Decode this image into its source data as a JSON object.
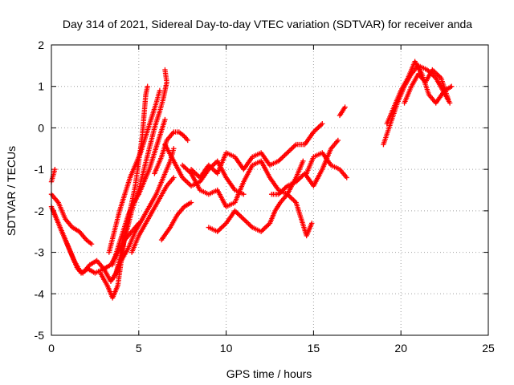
{
  "chart_data": {
    "type": "scatter",
    "title": "Day 314 of 2021, Sidereal Day-to-day VTEC variation (SDTVAR) for receiver anda",
    "xlabel": "GPS time / hours",
    "ylabel": "SDTVAR / TECUs",
    "xlim": [
      0,
      25
    ],
    "ylim": [
      -5,
      2
    ],
    "xticks": [
      "0",
      "5",
      "10",
      "15",
      "20",
      "25"
    ],
    "yticks": [
      "-5",
      "-4",
      "-3",
      "-2",
      "-1",
      "0",
      "1",
      "2"
    ],
    "grid": true,
    "marker": "+",
    "color": "#ff0000",
    "series": [
      {
        "name": "arc-1",
        "points": [
          [
            0.0,
            -1.3
          ],
          [
            0.2,
            -1.0
          ]
        ]
      },
      {
        "name": "arc-2",
        "points": [
          [
            0.0,
            -1.6
          ],
          [
            0.4,
            -1.8
          ],
          [
            0.8,
            -2.2
          ],
          [
            1.2,
            -2.4
          ],
          [
            1.6,
            -2.5
          ],
          [
            2.0,
            -2.7
          ],
          [
            2.3,
            -2.8
          ]
        ]
      },
      {
        "name": "arc-3",
        "points": [
          [
            0.0,
            -1.9
          ],
          [
            0.3,
            -2.2
          ],
          [
            0.7,
            -2.6
          ],
          [
            1.0,
            -2.9
          ],
          [
            1.3,
            -3.2
          ],
          [
            1.7,
            -3.5
          ],
          [
            2.1,
            -3.4
          ],
          [
            2.5,
            -3.5
          ],
          [
            3.0,
            -3.4
          ],
          [
            3.4,
            -3.3
          ],
          [
            3.8,
            -3.0
          ],
          [
            4.2,
            -2.7
          ],
          [
            4.6,
            -2.5
          ],
          [
            5.0,
            -2.3
          ]
        ]
      },
      {
        "name": "arc-4",
        "points": [
          [
            0.1,
            -2.0
          ],
          [
            0.5,
            -2.4
          ],
          [
            0.9,
            -2.8
          ],
          [
            1.2,
            -3.1
          ],
          [
            1.5,
            -3.4
          ],
          [
            1.8,
            -3.5
          ],
          [
            2.2,
            -3.3
          ],
          [
            2.6,
            -3.2
          ],
          [
            3.0,
            -3.4
          ],
          [
            3.4,
            -3.7
          ],
          [
            3.7,
            -3.5
          ],
          [
            4.0,
            -3.0
          ],
          [
            4.3,
            -2.5
          ],
          [
            4.6,
            -2.0
          ],
          [
            5.0,
            -1.5
          ],
          [
            5.3,
            -1.0
          ],
          [
            5.6,
            -0.5
          ],
          [
            5.9,
            0.0
          ],
          [
            6.2,
            0.4
          ],
          [
            6.4,
            0.7
          ],
          [
            6.6,
            1.1
          ],
          [
            6.5,
            1.4
          ]
        ]
      },
      {
        "name": "arc-5",
        "points": [
          [
            2.8,
            -3.5
          ],
          [
            3.2,
            -3.8
          ],
          [
            3.5,
            -4.1
          ],
          [
            3.8,
            -3.8
          ],
          [
            4.0,
            -3.2
          ],
          [
            4.2,
            -2.6
          ],
          [
            4.5,
            -2.0
          ],
          [
            4.8,
            -1.4
          ],
          [
            5.0,
            -0.8
          ],
          [
            5.2,
            -0.2
          ],
          [
            5.3,
            0.3
          ],
          [
            5.4,
            0.8
          ],
          [
            5.5,
            1.0
          ]
        ]
      },
      {
        "name": "arc-6",
        "points": [
          [
            3.3,
            -3.0
          ],
          [
            3.6,
            -2.5
          ],
          [
            3.9,
            -2.0
          ],
          [
            4.2,
            -1.6
          ],
          [
            4.5,
            -1.2
          ],
          [
            4.8,
            -0.9
          ],
          [
            5.1,
            -0.6
          ],
          [
            5.4,
            -0.2
          ],
          [
            5.7,
            0.2
          ],
          [
            6.0,
            0.6
          ],
          [
            6.2,
            0.9
          ]
        ]
      },
      {
        "name": "arc-7",
        "points": [
          [
            3.5,
            -3.3
          ],
          [
            3.8,
            -2.9
          ],
          [
            4.1,
            -2.5
          ],
          [
            4.4,
            -2.1
          ],
          [
            4.7,
            -1.8
          ],
          [
            5.0,
            -1.6
          ],
          [
            5.3,
            -1.3
          ],
          [
            5.6,
            -1.0
          ],
          [
            5.9,
            -0.6
          ],
          [
            6.2,
            -0.2
          ],
          [
            6.5,
            0.2
          ]
        ]
      },
      {
        "name": "arc-8",
        "points": [
          [
            3.6,
            -3.6
          ],
          [
            4.0,
            -3.2
          ],
          [
            4.4,
            -2.9
          ],
          [
            4.8,
            -2.5
          ],
          [
            5.2,
            -2.2
          ],
          [
            5.6,
            -1.9
          ],
          [
            6.0,
            -1.6
          ],
          [
            6.4,
            -1.2
          ],
          [
            6.8,
            -0.8
          ],
          [
            7.0,
            -0.5
          ]
        ]
      },
      {
        "name": "arc-9",
        "points": [
          [
            4.6,
            -3.0
          ],
          [
            5.0,
            -2.6
          ],
          [
            5.4,
            -2.3
          ],
          [
            5.8,
            -2.0
          ],
          [
            6.2,
            -1.7
          ],
          [
            6.6,
            -1.4
          ],
          [
            7.0,
            -1.2
          ]
        ]
      },
      {
        "name": "arc-10",
        "points": [
          [
            6.3,
            -2.7
          ],
          [
            6.8,
            -2.4
          ],
          [
            7.2,
            -2.1
          ],
          [
            7.6,
            -1.9
          ],
          [
            8.0,
            -1.8
          ]
        ]
      },
      {
        "name": "arc-11",
        "points": [
          [
            5.9,
            -1.1
          ],
          [
            6.3,
            -0.7
          ],
          [
            6.6,
            -0.3
          ],
          [
            7.0,
            -0.1
          ],
          [
            7.3,
            -0.1
          ],
          [
            7.6,
            -0.2
          ],
          [
            7.8,
            -0.3
          ]
        ]
      },
      {
        "name": "arc-12",
        "points": [
          [
            6.5,
            -0.4
          ],
          [
            7.0,
            -0.8
          ],
          [
            7.5,
            -1.2
          ],
          [
            8.0,
            -1.4
          ],
          [
            8.5,
            -1.3
          ],
          [
            9.0,
            -1.0
          ],
          [
            9.5,
            -0.8
          ],
          [
            10.0,
            -1.2
          ],
          [
            10.5,
            -1.5
          ],
          [
            11.0,
            -1.6
          ]
        ]
      },
      {
        "name": "arc-13",
        "points": [
          [
            7.5,
            -0.9
          ],
          [
            8.0,
            -1.1
          ],
          [
            8.5,
            -1.5
          ],
          [
            9.0,
            -1.6
          ],
          [
            9.5,
            -1.5
          ],
          [
            10.0,
            -1.9
          ],
          [
            10.5,
            -1.8
          ],
          [
            11.0,
            -1.3
          ],
          [
            11.5,
            -0.9
          ],
          [
            12.0,
            -0.8
          ],
          [
            12.5,
            -1.2
          ],
          [
            13.0,
            -1.5
          ],
          [
            13.5,
            -1.6
          ],
          [
            14.0,
            -1.2
          ],
          [
            14.4,
            -0.8
          ]
        ]
      },
      {
        "name": "arc-14",
        "points": [
          [
            8.0,
            -1.0
          ],
          [
            8.5,
            -1.2
          ],
          [
            9.0,
            -0.9
          ],
          [
            9.5,
            -1.1
          ],
          [
            10.0,
            -0.6
          ],
          [
            10.5,
            -0.7
          ],
          [
            11.0,
            -1.0
          ],
          [
            11.5,
            -0.7
          ],
          [
            12.0,
            -0.6
          ],
          [
            12.5,
            -0.9
          ],
          [
            13.0,
            -0.8
          ],
          [
            13.5,
            -0.6
          ],
          [
            14.0,
            -0.4
          ],
          [
            14.5,
            -0.4
          ],
          [
            15.0,
            -0.1
          ],
          [
            15.5,
            0.1
          ]
        ]
      },
      {
        "name": "arc-15",
        "points": [
          [
            9.0,
            -2.4
          ],
          [
            9.5,
            -2.5
          ],
          [
            10.0,
            -2.3
          ],
          [
            10.5,
            -2.0
          ],
          [
            11.0,
            -2.2
          ],
          [
            11.5,
            -2.4
          ],
          [
            12.0,
            -2.5
          ],
          [
            12.5,
            -2.3
          ],
          [
            12.8,
            -2.0
          ],
          [
            13.1,
            -1.8
          ],
          [
            13.5,
            -1.6
          ],
          [
            14.0,
            -1.8
          ],
          [
            14.3,
            -2.2
          ],
          [
            14.6,
            -2.6
          ],
          [
            14.9,
            -2.3
          ]
        ]
      },
      {
        "name": "arc-16",
        "points": [
          [
            12.6,
            -1.6
          ],
          [
            13.0,
            -1.6
          ],
          [
            13.5,
            -1.4
          ],
          [
            14.0,
            -1.3
          ],
          [
            14.5,
            -1.1
          ],
          [
            15.0,
            -1.4
          ],
          [
            15.5,
            -1.0
          ],
          [
            16.0,
            -0.5
          ],
          [
            16.4,
            -0.3
          ]
        ]
      },
      {
        "name": "arc-17",
        "points": [
          [
            14.6,
            -1.1
          ],
          [
            15.0,
            -0.7
          ],
          [
            15.5,
            -0.6
          ],
          [
            16.0,
            -0.9
          ],
          [
            16.5,
            -1.0
          ],
          [
            16.9,
            -1.2
          ]
        ]
      },
      {
        "name": "arc-18",
        "points": [
          [
            16.5,
            0.3
          ],
          [
            16.8,
            0.5
          ]
        ]
      },
      {
        "name": "arc-19",
        "points": [
          [
            19.0,
            -0.4
          ],
          [
            19.4,
            0.1
          ],
          [
            19.8,
            0.6
          ],
          [
            20.2,
            1.0
          ],
          [
            20.6,
            1.3
          ],
          [
            21.0,
            1.5
          ],
          [
            21.5,
            1.4
          ],
          [
            22.0,
            1.2
          ],
          [
            22.4,
            0.9
          ],
          [
            22.8,
            0.6
          ]
        ]
      },
      {
        "name": "arc-20",
        "points": [
          [
            19.2,
            0.1
          ],
          [
            19.6,
            0.5
          ],
          [
            20.0,
            0.9
          ],
          [
            20.4,
            1.2
          ],
          [
            20.8,
            1.6
          ],
          [
            21.2,
            1.3
          ],
          [
            21.6,
            0.8
          ],
          [
            22.0,
            0.6
          ],
          [
            22.5,
            0.9
          ],
          [
            22.9,
            1.0
          ]
        ]
      },
      {
        "name": "arc-21",
        "points": [
          [
            20.2,
            0.6
          ],
          [
            20.6,
            1.0
          ],
          [
            21.0,
            1.3
          ],
          [
            21.4,
            1.1
          ],
          [
            21.8,
            1.4
          ],
          [
            22.3,
            1.2
          ],
          [
            22.7,
            0.7
          ]
        ]
      }
    ]
  }
}
